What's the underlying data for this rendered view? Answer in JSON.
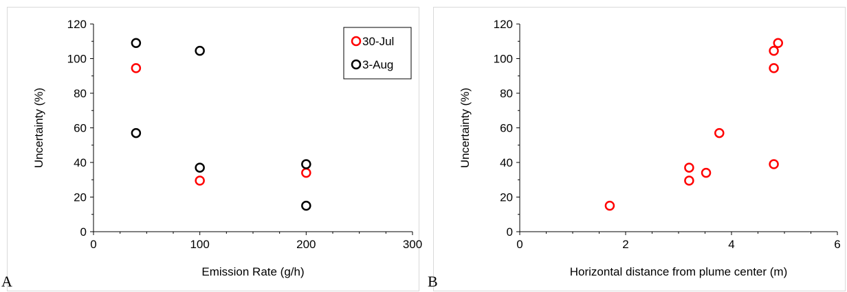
{
  "panel_labels": [
    "A",
    "B"
  ],
  "chart_data": [
    {
      "type": "scatter",
      "title": "",
      "xlabel": "Emission Rate (g/h)",
      "ylabel": "Uncertainty (%)",
      "xlim": [
        0,
        300
      ],
      "ylim": [
        0,
        120
      ],
      "xticks": [
        0,
        100,
        200,
        300
      ],
      "yticks": [
        0,
        20,
        40,
        60,
        80,
        100,
        120
      ],
      "grid": false,
      "legend_position": "top-right",
      "series": [
        {
          "name": "30-Jul",
          "color": "#ff0000",
          "points": [
            [
              40,
              94.5
            ],
            [
              100,
              29.5
            ],
            [
              200,
              34
            ]
          ]
        },
        {
          "name": "3-Aug",
          "color": "#000000",
          "points": [
            [
              40,
              109
            ],
            [
              40,
              57
            ],
            [
              100,
              104.5
            ],
            [
              100,
              37
            ],
            [
              200,
              39
            ],
            [
              200,
              15
            ]
          ]
        }
      ]
    },
    {
      "type": "scatter",
      "title": "",
      "xlabel": "Horizontal distance from plume center (m)",
      "ylabel": "Uncertainty (%)",
      "xlim": [
        0,
        6
      ],
      "ylim": [
        0,
        120
      ],
      "xticks": [
        0,
        2,
        4,
        6
      ],
      "yticks": [
        0,
        20,
        40,
        60,
        80,
        100,
        120
      ],
      "grid": false,
      "legend_position": "none",
      "series": [
        {
          "color": "#ff0000",
          "points": [
            [
              1.7,
              15
            ],
            [
              3.2,
              29.5
            ],
            [
              3.2,
              37
            ],
            [
              3.52,
              34
            ],
            [
              3.77,
              57
            ],
            [
              4.8,
              39
            ],
            [
              4.8,
              94.5
            ],
            [
              4.8,
              104.5
            ],
            [
              4.88,
              109
            ]
          ]
        }
      ]
    }
  ]
}
